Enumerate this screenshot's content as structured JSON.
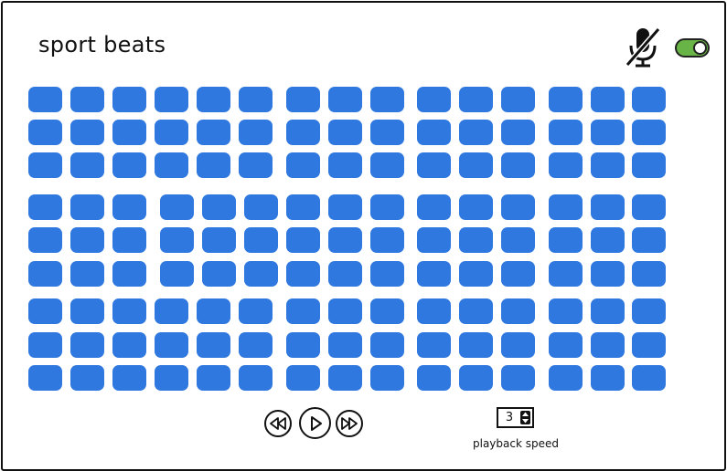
{
  "app": {
    "title": "sport beats"
  },
  "header": {
    "mic_icon": "microphone-muted-icon",
    "toggle_state": "on",
    "toggle_color": "#69b446"
  },
  "pads": {
    "rows": 9,
    "columns": 15,
    "color": "#2f78e0"
  },
  "transport": {
    "rewind_icon": "rewind-icon",
    "play_icon": "play-icon",
    "fast_forward_icon": "fast-forward-icon"
  },
  "playback_speed": {
    "value": "3",
    "label": "playback speed"
  }
}
